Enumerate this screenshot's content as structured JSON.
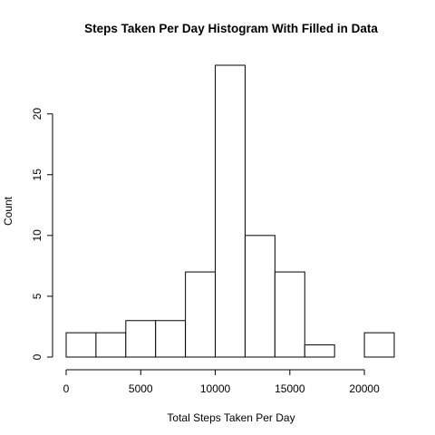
{
  "chart_data": {
    "type": "bar",
    "title": "Steps Taken Per Day Histogram With Filled in Data",
    "xlabel": "Total Steps Taken Per Day",
    "ylabel": "Count",
    "bins": [
      {
        "start": 0,
        "end": 2000,
        "count": 2
      },
      {
        "start": 2000,
        "end": 4000,
        "count": 2
      },
      {
        "start": 4000,
        "end": 6000,
        "count": 3
      },
      {
        "start": 6000,
        "end": 8000,
        "count": 3
      },
      {
        "start": 8000,
        "end": 10000,
        "count": 7
      },
      {
        "start": 10000,
        "end": 12000,
        "count": 24
      },
      {
        "start": 12000,
        "end": 14000,
        "count": 10
      },
      {
        "start": 14000,
        "end": 16000,
        "count": 7
      },
      {
        "start": 16000,
        "end": 18000,
        "count": 1
      },
      {
        "start": 18000,
        "end": 20000,
        "count": 0
      },
      {
        "start": 20000,
        "end": 22000,
        "count": 2
      }
    ],
    "xlim": [
      0,
      22000
    ],
    "ylim": [
      0,
      24
    ],
    "x_ticks": [
      0,
      5000,
      10000,
      15000,
      20000
    ],
    "y_ticks": [
      0,
      5,
      10,
      15,
      20
    ],
    "grid": false,
    "legend": "none"
  }
}
